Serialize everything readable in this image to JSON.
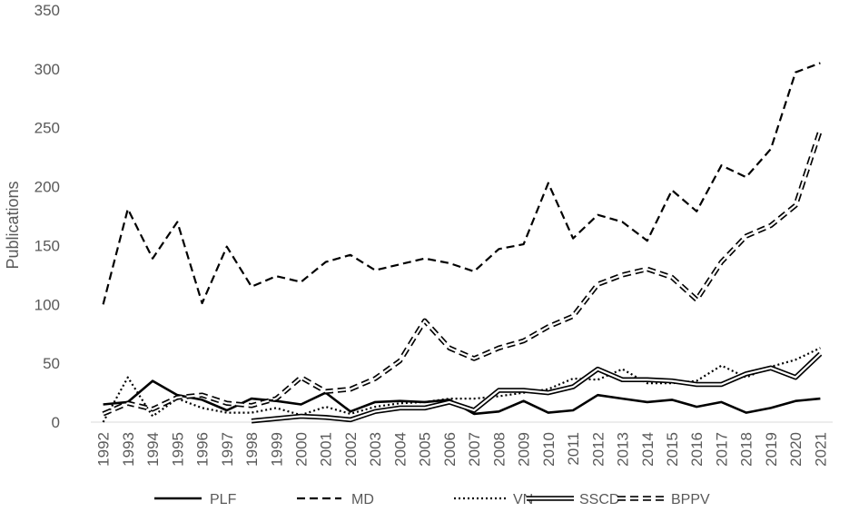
{
  "chart_data": {
    "type": "line",
    "title": "",
    "xlabel": "",
    "ylabel": "Publications",
    "ylim": [
      0,
      350
    ],
    "yticks": [
      "0",
      "50",
      "100",
      "150",
      "200",
      "250",
      "300",
      "350"
    ],
    "grid": false,
    "legend_position": "bottom",
    "categories": [
      "1992",
      "1993",
      "1994",
      "1995",
      "1996",
      "1997",
      "1998",
      "1999",
      "2000",
      "2001",
      "2002",
      "2003",
      "2004",
      "2005",
      "2006",
      "2007",
      "2008",
      "2009",
      "2010",
      "2011",
      "2012",
      "2013",
      "2014",
      "2015",
      "2016",
      "2017",
      "2018",
      "2019",
      "2020",
      "2021"
    ],
    "series": [
      {
        "name": "PLF",
        "style": "solid",
        "color": "#000000",
        "values": [
          15,
          17,
          35,
          23,
          19,
          10,
          20,
          18,
          15,
          25,
          9,
          17,
          18,
          17,
          19,
          7,
          9,
          18,
          8,
          10,
          23,
          20,
          17,
          19,
          13,
          17,
          8,
          12,
          18,
          20
        ]
      },
      {
        "name": "MD",
        "style": "dashed",
        "color": "#000000",
        "values": [
          100,
          181,
          139,
          170,
          101,
          149,
          115,
          124,
          119,
          136,
          142,
          129,
          134,
          139,
          135,
          128,
          147,
          151,
          203,
          156,
          176,
          170,
          154,
          197,
          179,
          218,
          208,
          232,
          297,
          305
        ]
      },
      {
        "name": "VN",
        "style": "dotted",
        "color": "#000000",
        "values": [
          0,
          38,
          5,
          20,
          12,
          8,
          8,
          12,
          6,
          13,
          7,
          13,
          16,
          17,
          20,
          20,
          22,
          25,
          28,
          37,
          36,
          45,
          33,
          33,
          35,
          48,
          38,
          47,
          53,
          63
        ]
      },
      {
        "name": "SSCD",
        "style": "double",
        "color": "#000000",
        "values": [
          null,
          null,
          null,
          null,
          null,
          null,
          1,
          3,
          5,
          4,
          2,
          9,
          12,
          12,
          17,
          10,
          27,
          27,
          25,
          30,
          45,
          36,
          36,
          35,
          32,
          32,
          41,
          46,
          38,
          58
        ]
      },
      {
        "name": "BPPV",
        "style": "double-dashed",
        "color": "#000000",
        "values": [
          7,
          16,
          11,
          21,
          23,
          16,
          14,
          20,
          38,
          26,
          28,
          37,
          52,
          86,
          63,
          54,
          63,
          69,
          81,
          90,
          117,
          125,
          130,
          123,
          104,
          136,
          158,
          167,
          184,
          248
        ]
      }
    ]
  }
}
